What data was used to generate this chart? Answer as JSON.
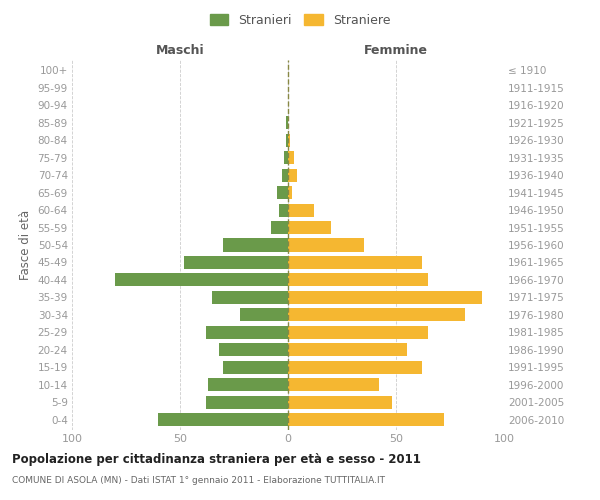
{
  "age_groups": [
    "100+",
    "95-99",
    "90-94",
    "85-89",
    "80-84",
    "75-79",
    "70-74",
    "65-69",
    "60-64",
    "55-59",
    "50-54",
    "45-49",
    "40-44",
    "35-39",
    "30-34",
    "25-29",
    "20-24",
    "15-19",
    "10-14",
    "5-9",
    "0-4"
  ],
  "birth_years": [
    "≤ 1910",
    "1911-1915",
    "1916-1920",
    "1921-1925",
    "1926-1930",
    "1931-1935",
    "1936-1940",
    "1941-1945",
    "1946-1950",
    "1951-1955",
    "1956-1960",
    "1961-1965",
    "1966-1970",
    "1971-1975",
    "1976-1980",
    "1981-1985",
    "1986-1990",
    "1991-1995",
    "1996-2000",
    "2001-2005",
    "2006-2010"
  ],
  "maschi": [
    0,
    0,
    0,
    1,
    1,
    2,
    3,
    5,
    4,
    8,
    30,
    48,
    80,
    35,
    22,
    38,
    32,
    30,
    37,
    38,
    60
  ],
  "femmine": [
    0,
    0,
    0,
    0,
    1,
    3,
    4,
    2,
    12,
    20,
    35,
    62,
    65,
    90,
    82,
    65,
    55,
    62,
    42,
    48,
    72
  ],
  "maschi_color": "#6a9a4a",
  "femmine_color": "#f5b731",
  "background_color": "#ffffff",
  "grid_color": "#cccccc",
  "title": "Popolazione per cittadinanza straniera per età e sesso - 2011",
  "subtitle": "COMUNE DI ASOLA (MN) - Dati ISTAT 1° gennaio 2011 - Elaborazione TUTTITALIA.IT",
  "ylabel_left": "Fasce di età",
  "xlabel_left": "Maschi",
  "xlabel_right": "Femmine",
  "legend_stranieri": "Stranieri",
  "legend_straniere": "Straniere",
  "xlim": 100,
  "tick_color": "#999999",
  "bar_height": 0.75
}
